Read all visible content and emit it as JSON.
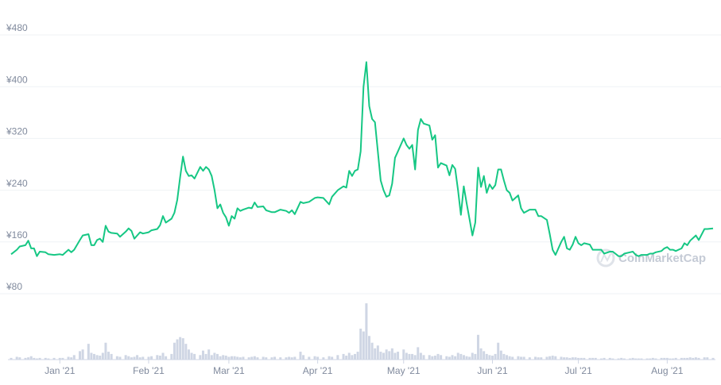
{
  "chart_data": {
    "type": "line",
    "watermark": "CoinMarketCap",
    "x": [
      -17,
      -15,
      -14,
      -12,
      -11,
      -10,
      -9,
      -8,
      -7,
      -5,
      -4,
      -2,
      0,
      1,
      3,
      4,
      5,
      7,
      8,
      10,
      11,
      12,
      13,
      14,
      15,
      16,
      17,
      18,
      20,
      21,
      23,
      24,
      25,
      26,
      27,
      28,
      29,
      31,
      32,
      34,
      35,
      36,
      37,
      39,
      40,
      41,
      42,
      43,
      44,
      45,
      46,
      47,
      49,
      50,
      51,
      52,
      53,
      54,
      55,
      56,
      57,
      58,
      59,
      60,
      61,
      62,
      63,
      64,
      66,
      67,
      68,
      69,
      71,
      72,
      74,
      75,
      77,
      79,
      80,
      81,
      82,
      84,
      85,
      87,
      89,
      90,
      92,
      94,
      95,
      97,
      99,
      100,
      101,
      102,
      103,
      104,
      105,
      106,
      107,
      108,
      109,
      110,
      111,
      112,
      113,
      114,
      115,
      116,
      117,
      118,
      120,
      121,
      122,
      123,
      124,
      125,
      126,
      127,
      129,
      130,
      131,
      132,
      133,
      135,
      136,
      137,
      138,
      139,
      140,
      141,
      142,
      143,
      144,
      145,
      146,
      147,
      148,
      149,
      150,
      151,
      152,
      153,
      154,
      155,
      156,
      157,
      158,
      160,
      161,
      162,
      164,
      166,
      167,
      168,
      170,
      171,
      172,
      173,
      175,
      176,
      177,
      178,
      179,
      180,
      181,
      182,
      183,
      185,
      186,
      187,
      189,
      190,
      192,
      193,
      195,
      196,
      197,
      199,
      200,
      201,
      202,
      203,
      205,
      206,
      207,
      208,
      210,
      211,
      212,
      213,
      214,
      215,
      217,
      218,
      219,
      220,
      221,
      222,
      223,
      225,
      226,
      228
    ],
    "series": [
      {
        "color": "#16c784",
        "values": [
          141,
          148,
          153,
          155,
          162,
          150,
          150,
          138,
          145,
          144,
          141,
          140,
          141,
          140,
          148,
          144,
          148,
          163,
          170,
          172,
          155,
          155,
          163,
          165,
          160,
          185,
          176,
          174,
          173,
          168,
          176,
          181,
          177,
          165,
          170,
          175,
          173,
          175,
          178,
          180,
          186,
          200,
          190,
          196,
          205,
          225,
          260,
          292,
          270,
          262,
          263,
          258,
          276,
          270,
          276,
          272,
          262,
          240,
          212,
          218,
          205,
          198,
          185,
          200,
          196,
          212,
          208,
          210,
          213,
          212,
          221,
          214,
          215,
          209,
          206,
          206,
          210,
          208,
          205,
          209,
          203,
          222,
          220,
          222,
          228,
          229,
          228,
          218,
          230,
          240,
          246,
          244,
          270,
          262,
          270,
          272,
          300,
          400,
          438,
          370,
          350,
          345,
          300,
          255,
          240,
          230,
          232,
          250,
          290,
          300,
          320,
          310,
          304,
          310,
          272,
          333,
          350,
          343,
          340,
          318,
          325,
          275,
          282,
          278,
          263,
          279,
          273,
          240,
          202,
          246,
          220,
          195,
          170,
          190,
          275,
          245,
          262,
          236,
          249,
          242,
          248,
          272,
          272,
          255,
          240,
          236,
          224,
          232,
          212,
          205,
          210,
          210,
          200,
          200,
          194,
          172,
          148,
          140,
          160,
          168,
          150,
          148,
          156,
          168,
          158,
          155,
          158,
          156,
          148,
          148,
          148,
          142,
          145,
          145,
          138,
          138,
          142,
          144,
          145,
          140,
          138,
          140,
          140,
          142,
          142,
          144,
          146,
          150,
          152,
          148,
          148,
          146,
          150,
          158,
          155,
          162,
          166,
          170,
          163,
          180,
          180,
          181
        ]
      },
      {
        "color": "#cfd6e4",
        "axis": "y2",
        "values": [
          3,
          5,
          4,
          3,
          4,
          6,
          3,
          2,
          3,
          3,
          2,
          3,
          3,
          3,
          5,
          4,
          8,
          15,
          18,
          28,
          12,
          10,
          8,
          7,
          12,
          30,
          14,
          10,
          6,
          5,
          8,
          6,
          4,
          5,
          8,
          4,
          5,
          5,
          6,
          8,
          7,
          12,
          6,
          10,
          30,
          36,
          40,
          38,
          28,
          18,
          12,
          10,
          8,
          16,
          10,
          18,
          8,
          12,
          10,
          6,
          8,
          7,
          5,
          6,
          6,
          5,
          4,
          5,
          4,
          5,
          6,
          4,
          5,
          4,
          4,
          5,
          4,
          4,
          5,
          4,
          5,
          14,
          8,
          5,
          6,
          5,
          4,
          6,
          5,
          8,
          10,
          7,
          12,
          8,
          10,
          14,
          55,
          50,
          100,
          42,
          30,
          20,
          25,
          14,
          12,
          18,
          15,
          20,
          12,
          14,
          18,
          12,
          10,
          10,
          8,
          22,
          12,
          8,
          8,
          6,
          7,
          10,
          8,
          6,
          5,
          8,
          6,
          12,
          10,
          8,
          6,
          5,
          12,
          10,
          44,
          20,
          15,
          10,
          8,
          7,
          10,
          30,
          16,
          10,
          8,
          6,
          5,
          6,
          5,
          5,
          4,
          5,
          4,
          4,
          5,
          6,
          7,
          6,
          5,
          4,
          4,
          3,
          4,
          4,
          3,
          3,
          3,
          3,
          3,
          3,
          2,
          3,
          3,
          2,
          2,
          3,
          2,
          2,
          3,
          2,
          2,
          2,
          2,
          2,
          3,
          2,
          3,
          3,
          3,
          2,
          2,
          3,
          3,
          3,
          3,
          4,
          3,
          4,
          3,
          4,
          4,
          3
        ]
      }
    ],
    "xlim": [
      -17,
      228
    ],
    "xticks": [
      {
        "value": 0,
        "label": "Jan '21"
      },
      {
        "value": 31,
        "label": "Feb '21"
      },
      {
        "value": 59,
        "label": "Mar '21"
      },
      {
        "value": 90,
        "label": "Apr '21"
      },
      {
        "value": 120,
        "label": "May '21"
      },
      {
        "value": 151,
        "label": "Jun '21"
      },
      {
        "value": 181,
        "label": "Jul '21"
      },
      {
        "value": 212,
        "label": "Aug '21"
      }
    ],
    "ylim": [
      80,
      480
    ],
    "yticks": [
      {
        "value": 80,
        "label": "¥80"
      },
      {
        "value": 160,
        "label": "¥160"
      },
      {
        "value": 240,
        "label": "¥240"
      },
      {
        "value": 320,
        "label": "¥320"
      },
      {
        "value": 400,
        "label": "¥400"
      },
      {
        "value": 480,
        "label": "¥480"
      }
    ],
    "y2lim": [
      0,
      110
    ],
    "grid": true
  }
}
